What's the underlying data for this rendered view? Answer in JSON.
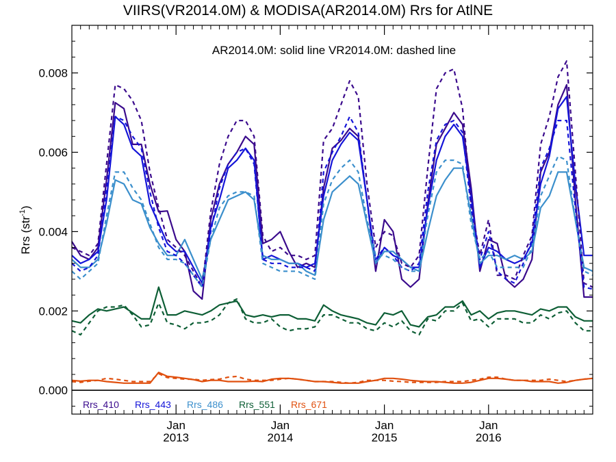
{
  "chart_data": {
    "type": "line",
    "title": "VIIRS(VR2014.0M) & MODISA(AR2014.0M)  Rrs for AtlNE",
    "annotation": "AR2014.0M: solid line   VR2014.0M: dashed line",
    "ylabel": "Rrs (str",
    "ylabel_exp": "-1",
    "ylabel_close": ")",
    "ylim": [
      -0.0006,
      0.0092
    ],
    "xlim": [
      2012.0,
      2017.0
    ],
    "yticks": [
      0.0,
      0.002,
      0.004,
      0.006,
      0.008
    ],
    "ytick_labels": [
      "0.000",
      "0.002",
      "0.004",
      "0.006",
      "0.008"
    ],
    "xticks": [
      {
        "x": 2013.0,
        "month": "Jan",
        "year": "2013"
      },
      {
        "x": 2014.0,
        "month": "Jan",
        "year": "2014"
      },
      {
        "x": 2015.0,
        "month": "Jan",
        "year": "2015"
      },
      {
        "x": 2016.0,
        "month": "Jan",
        "year": "2016"
      }
    ],
    "zero_line": true,
    "grid": false,
    "legend_placement": "bottom-left inside plot",
    "x_start": 2012.0,
    "x_step_months": 1,
    "series": [
      {
        "name": "Rrs_410",
        "color": "#3a0a8c",
        "style": "solid",
        "values": [
          0.00375,
          0.0034,
          0.0033,
          0.0036,
          0.0053,
          0.00725,
          0.0071,
          0.0062,
          0.0062,
          0.0052,
          0.0045,
          0.00452,
          0.0038,
          0.0035,
          0.0025,
          0.0023,
          0.0043,
          0.0052,
          0.0057,
          0.006,
          0.0064,
          0.0062,
          0.0037,
          0.0038,
          0.004,
          0.0035,
          0.0031,
          0.0032,
          0.0031,
          0.0051,
          0.0061,
          0.0063,
          0.0066,
          0.0064,
          0.0048,
          0.003,
          0.0043,
          0.004,
          0.0028,
          0.0026,
          0.0028,
          0.0047,
          0.0062,
          0.0066,
          0.007,
          0.0067,
          0.0051,
          0.003,
          0.0038,
          0.0037,
          0.0028,
          0.0026,
          0.0028,
          0.0033,
          0.0055,
          0.006,
          0.0072,
          0.0077,
          0.0048,
          0.00235,
          0.00235
        ]
      },
      {
        "name": "Rrs_443",
        "color": "#1414d8",
        "style": "solid",
        "values": [
          0.0034,
          0.0032,
          0.0033,
          0.0035,
          0.0048,
          0.0069,
          0.0067,
          0.0061,
          0.0059,
          0.0047,
          0.0042,
          0.0037,
          0.0035,
          0.0035,
          0.0031,
          0.0027,
          0.0041,
          0.0048,
          0.0056,
          0.0058,
          0.0061,
          0.0058,
          0.0033,
          0.0034,
          0.0033,
          0.0032,
          0.0032,
          0.0031,
          0.0032,
          0.0049,
          0.0058,
          0.0062,
          0.0065,
          0.0063,
          0.0048,
          0.0032,
          0.0036,
          0.0034,
          0.0033,
          0.0031,
          0.0031,
          0.0046,
          0.0058,
          0.0064,
          0.0067,
          0.0064,
          0.0049,
          0.0031,
          0.0036,
          0.0035,
          0.0033,
          0.0032,
          0.0033,
          0.0037,
          0.0052,
          0.0059,
          0.0071,
          0.0074,
          0.0052,
          0.0034,
          0.0034
        ]
      },
      {
        "name": "Rrs_486",
        "color": "#3b8fcc",
        "style": "solid",
        "values": [
          0.0033,
          0.0031,
          0.0031,
          0.0033,
          0.0042,
          0.0053,
          0.0052,
          0.0048,
          0.0047,
          0.0041,
          0.0037,
          0.0034,
          0.0034,
          0.0038,
          0.0033,
          0.0028,
          0.0038,
          0.0043,
          0.0048,
          0.0049,
          0.005,
          0.0048,
          0.0034,
          0.0033,
          0.0033,
          0.0032,
          0.0032,
          0.003,
          0.0029,
          0.0043,
          0.005,
          0.0052,
          0.0054,
          0.0052,
          0.0042,
          0.0032,
          0.0035,
          0.0035,
          0.0033,
          0.0031,
          0.003,
          0.004,
          0.0049,
          0.0053,
          0.0056,
          0.0056,
          0.0044,
          0.0032,
          0.0034,
          0.0034,
          0.0033,
          0.0034,
          0.0033,
          0.0035,
          0.0046,
          0.0049,
          0.0055,
          0.0055,
          0.0043,
          0.0031,
          0.003
        ]
      },
      {
        "name": "Rrs_551",
        "color": "#0d5e35",
        "style": "solid",
        "values": [
          0.00175,
          0.0017,
          0.0019,
          0.00205,
          0.002,
          0.00205,
          0.0021,
          0.00195,
          0.0018,
          0.0018,
          0.0026,
          0.0019,
          0.0019,
          0.002,
          0.00195,
          0.0019,
          0.002,
          0.00215,
          0.0022,
          0.00225,
          0.0019,
          0.00185,
          0.0019,
          0.00185,
          0.0019,
          0.0019,
          0.0018,
          0.0018,
          0.00175,
          0.00215,
          0.002,
          0.0019,
          0.00185,
          0.0018,
          0.0017,
          0.00165,
          0.00195,
          0.0019,
          0.002,
          0.00165,
          0.0016,
          0.00185,
          0.0019,
          0.0021,
          0.0021,
          0.00225,
          0.0019,
          0.002,
          0.0018,
          0.00195,
          0.002,
          0.002,
          0.00195,
          0.0019,
          0.00205,
          0.002,
          0.0021,
          0.0021,
          0.00185,
          0.00175,
          0.00175
        ]
      },
      {
        "name": "Rrs_671",
        "color": "#e0500f",
        "style": "solid",
        "values": [
          0.00025,
          0.00023,
          0.00025,
          0.00025,
          0.00022,
          0.0002,
          0.00018,
          0.00018,
          0.00018,
          0.00018,
          0.00045,
          0.00035,
          0.00033,
          0.0003,
          0.00027,
          0.00022,
          0.00025,
          0.00025,
          0.00022,
          0.00022,
          0.00022,
          0.00023,
          0.00022,
          0.00028,
          0.0003,
          0.0003,
          0.00028,
          0.00025,
          0.00022,
          0.00022,
          0.0002,
          0.00018,
          0.00018,
          0.00018,
          0.00022,
          0.00025,
          0.0003,
          0.0003,
          0.00028,
          0.00025,
          0.00023,
          0.00022,
          0.00022,
          0.0002,
          0.00018,
          0.00018,
          0.0002,
          0.00025,
          0.0003,
          0.0003,
          0.00028,
          0.00025,
          0.00025,
          0.00022,
          0.00022,
          0.00022,
          0.00018,
          0.0002,
          0.00025,
          0.00028,
          0.0003
        ]
      },
      {
        "name": "Rrs_410",
        "color": "#3a0a8c",
        "style": "dashed",
        "values": [
          0.0036,
          0.0035,
          0.0034,
          0.0037,
          0.0057,
          0.0077,
          0.0076,
          0.0073,
          0.0068,
          0.0055,
          0.0046,
          0.0038,
          0.0036,
          0.0034,
          0.003,
          0.0026,
          0.0045,
          0.0057,
          0.0064,
          0.0068,
          0.0068,
          0.0064,
          0.0039,
          0.0035,
          0.0036,
          0.0034,
          0.0034,
          0.0033,
          0.0034,
          0.0063,
          0.0066,
          0.0072,
          0.0078,
          0.0074,
          0.0052,
          0.0036,
          0.004,
          0.0039,
          0.0032,
          0.0031,
          0.0034,
          0.0056,
          0.0076,
          0.008,
          0.0081,
          0.0071,
          0.0047,
          0.0034,
          0.0043,
          0.0029,
          0.0029,
          0.0028,
          0.0034,
          0.0039,
          0.0062,
          0.0069,
          0.0079,
          0.0083,
          0.0055,
          0.0027,
          0.0026
        ]
      },
      {
        "name": "Rrs_443",
        "color": "#1414d8",
        "style": "dashed",
        "values": [
          0.0032,
          0.003,
          0.0031,
          0.0034,
          0.0051,
          0.0069,
          0.0068,
          0.0064,
          0.0061,
          0.005,
          0.0041,
          0.0035,
          0.0034,
          0.0032,
          0.0029,
          0.0026,
          0.004,
          0.0051,
          0.0057,
          0.006,
          0.0061,
          0.0057,
          0.0033,
          0.0032,
          0.0032,
          0.0031,
          0.0031,
          0.0031,
          0.003,
          0.0055,
          0.006,
          0.0064,
          0.0069,
          0.0065,
          0.0048,
          0.0033,
          0.0036,
          0.0034,
          0.0031,
          0.003,
          0.0032,
          0.005,
          0.0063,
          0.0067,
          0.0068,
          0.0065,
          0.0046,
          0.0033,
          0.004,
          0.003,
          0.0028,
          0.0027,
          0.0032,
          0.0038,
          0.0056,
          0.0061,
          0.0068,
          0.0068,
          0.0046,
          0.0026,
          0.00255
        ]
      },
      {
        "name": "Rrs_486",
        "color": "#3b8fcc",
        "style": "dashed",
        "values": [
          0.003,
          0.0028,
          0.003,
          0.0032,
          0.0044,
          0.0055,
          0.0055,
          0.0051,
          0.0048,
          0.0042,
          0.0036,
          0.0033,
          0.0033,
          0.0032,
          0.0029,
          0.0026,
          0.0038,
          0.0046,
          0.0049,
          0.005,
          0.005,
          0.0049,
          0.0032,
          0.0031,
          0.003,
          0.003,
          0.003,
          0.0029,
          0.0028,
          0.0047,
          0.0053,
          0.0056,
          0.0058,
          0.0055,
          0.0043,
          0.0034,
          0.0034,
          0.0033,
          0.0031,
          0.003,
          0.003,
          0.0044,
          0.0055,
          0.0058,
          0.0058,
          0.0057,
          0.0042,
          0.0033,
          0.0035,
          0.0031,
          0.0031,
          0.0031,
          0.0031,
          0.0036,
          0.0049,
          0.0054,
          0.0059,
          0.0058,
          0.0043,
          0.003,
          0.0029
        ]
      },
      {
        "name": "Rrs_551",
        "color": "#0d5e35",
        "style": "dashed",
        "values": [
          0.0015,
          0.0014,
          0.0017,
          0.002,
          0.0021,
          0.0021,
          0.00215,
          0.0019,
          0.0016,
          0.00165,
          0.0022,
          0.0017,
          0.00165,
          0.00155,
          0.0017,
          0.0017,
          0.00175,
          0.0019,
          0.0022,
          0.0023,
          0.0018,
          0.0017,
          0.0017,
          0.0018,
          0.0016,
          0.0015,
          0.00155,
          0.00155,
          0.0016,
          0.0019,
          0.0019,
          0.0018,
          0.0017,
          0.0017,
          0.00155,
          0.0015,
          0.0017,
          0.0016,
          0.00175,
          0.0015,
          0.0014,
          0.0018,
          0.00175,
          0.002,
          0.002,
          0.0022,
          0.00175,
          0.0018,
          0.0016,
          0.0018,
          0.0018,
          0.0018,
          0.0017,
          0.0017,
          0.0019,
          0.0018,
          0.00195,
          0.002,
          0.0017,
          0.0015,
          0.0015
        ]
      },
      {
        "name": "Rrs_671",
        "color": "#e0500f",
        "style": "dashed",
        "values": [
          0.00022,
          0.0002,
          0.00023,
          0.00025,
          0.0003,
          0.00028,
          0.00025,
          0.00022,
          0.00022,
          0.00022,
          0.00042,
          0.00032,
          0.0003,
          0.00028,
          0.00028,
          0.00025,
          0.00027,
          0.00028,
          0.00033,
          0.00035,
          0.00028,
          0.00025,
          0.00025,
          0.00025,
          0.00028,
          0.0003,
          0.00028,
          0.00025,
          0.00022,
          0.00022,
          0.00022,
          0.0002,
          0.00018,
          0.0002,
          0.00025,
          0.00025,
          0.00025,
          0.00023,
          0.00022,
          0.0002,
          0.0002,
          0.0002,
          0.0002,
          0.00022,
          0.00022,
          0.00022,
          0.00025,
          0.00028,
          0.00033,
          0.00033,
          0.00028,
          0.00025,
          0.00025,
          0.00025,
          0.00025,
          0.00028,
          0.00025,
          0.00022,
          0.00025,
          0.00028,
          0.0003
        ]
      }
    ],
    "legend": [
      {
        "label": "Rrs_410",
        "color": "#3a0a8c"
      },
      {
        "label": "Rrs_443",
        "color": "#1414d8"
      },
      {
        "label": "Rrs_486",
        "color": "#3b8fcc"
      },
      {
        "label": "Rrs_551",
        "color": "#0d5e35"
      },
      {
        "label": "Rrs_671",
        "color": "#e0500f"
      }
    ]
  }
}
